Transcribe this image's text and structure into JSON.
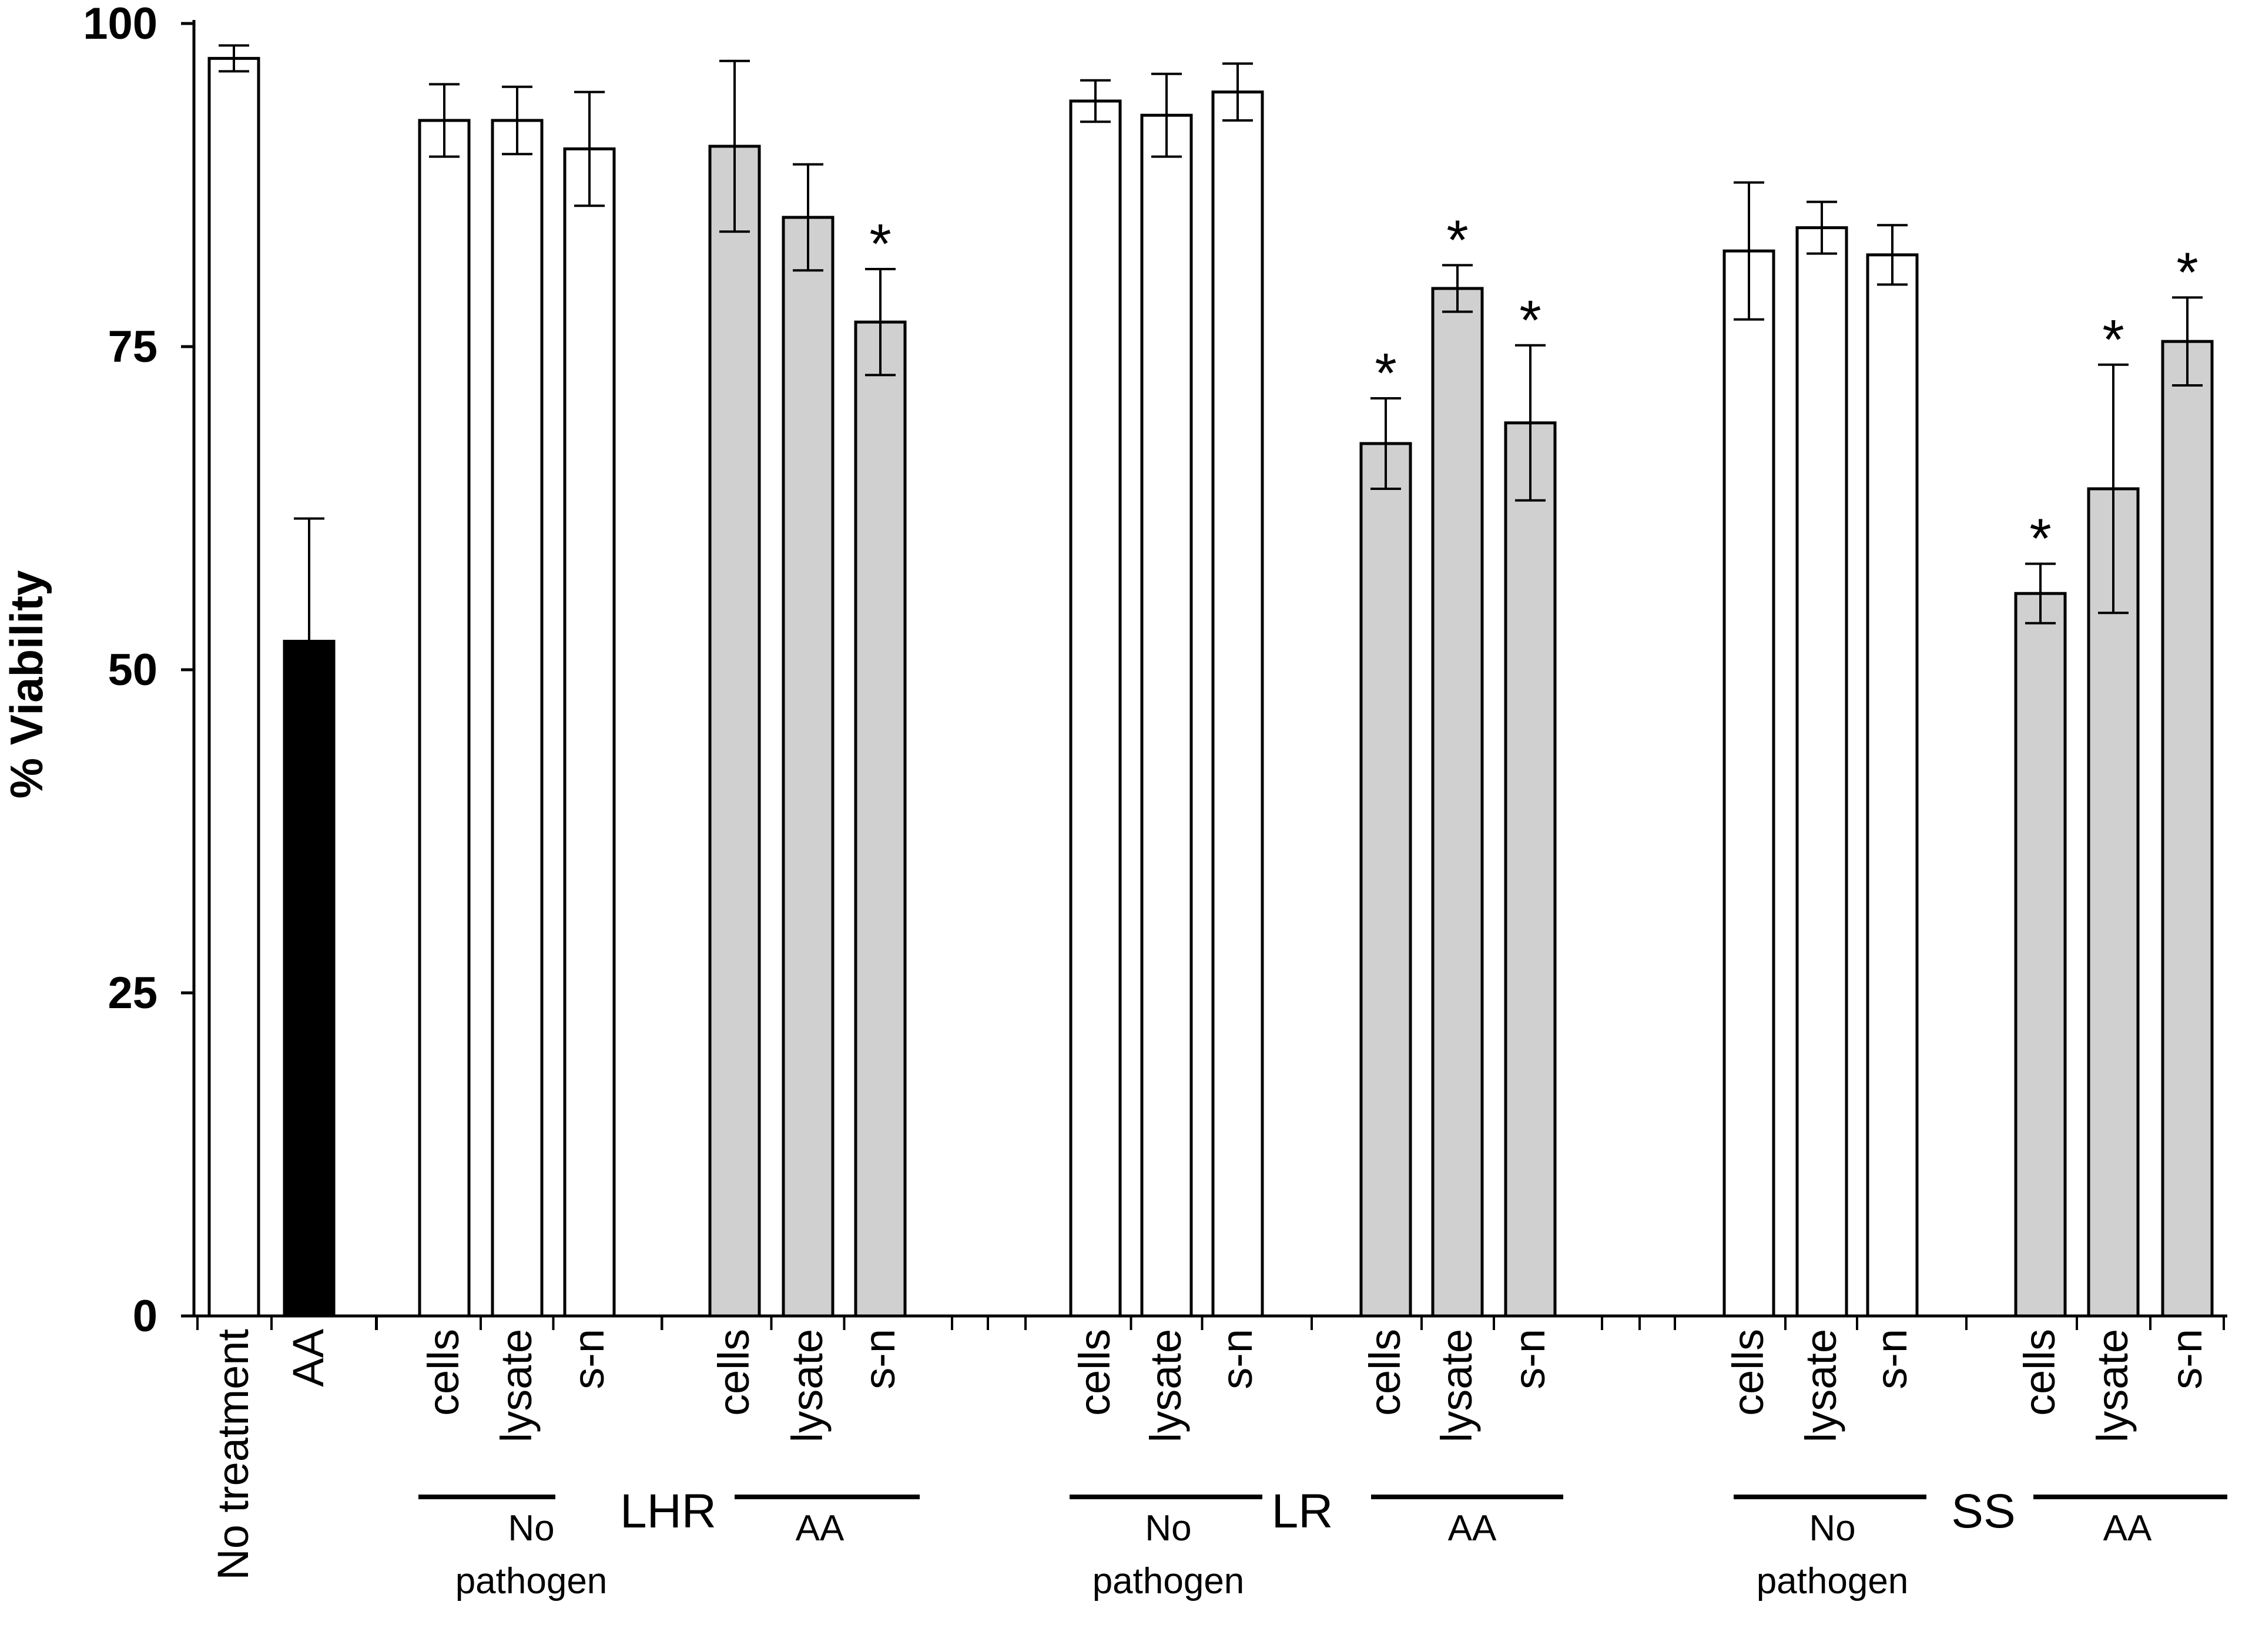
{
  "chart_data": {
    "type": "bar",
    "ylabel": "% Viability",
    "ylim": [
      0,
      100
    ],
    "yticks": [
      0,
      25,
      50,
      75,
      100
    ],
    "grid": false,
    "bars": [
      {
        "label": "No treatment",
        "value": 97.3,
        "err": 1.0,
        "color": "#ffffff",
        "sig": ""
      },
      {
        "label": "AA",
        "value": 52.2,
        "err": 9.5,
        "color": "#000000",
        "sig": ""
      },
      {
        "label": "cells",
        "value": 92.5,
        "err": 2.8,
        "color": "#ffffff",
        "sig": ""
      },
      {
        "label": "lysate",
        "value": 92.5,
        "err": 2.6,
        "color": "#ffffff",
        "sig": ""
      },
      {
        "label": "s-n",
        "value": 90.3,
        "err": 4.4,
        "color": "#ffffff",
        "sig": ""
      },
      {
        "label": "cells",
        "value": 90.5,
        "err": 6.6,
        "color": "#d0d0d0",
        "sig": ""
      },
      {
        "label": "lysate",
        "value": 85.0,
        "err": 4.1,
        "color": "#d0d0d0",
        "sig": ""
      },
      {
        "label": "s-n",
        "value": 76.9,
        "err": 4.1,
        "color": "#d0d0d0",
        "sig": "*"
      },
      {
        "label": "cells",
        "value": 94.0,
        "err": 1.6,
        "color": "#ffffff",
        "sig": ""
      },
      {
        "label": "lysate",
        "value": 92.9,
        "err": 3.2,
        "color": "#ffffff",
        "sig": ""
      },
      {
        "label": "s-n",
        "value": 94.7,
        "err": 2.2,
        "color": "#ffffff",
        "sig": ""
      },
      {
        "label": "cells",
        "value": 67.5,
        "err": 3.5,
        "color": "#d0d0d0",
        "sig": "*"
      },
      {
        "label": "lysate",
        "value": 79.5,
        "err": 1.8,
        "color": "#d0d0d0",
        "sig": "*"
      },
      {
        "label": "s-n",
        "value": 69.1,
        "err": 6.0,
        "color": "#d0d0d0",
        "sig": "*"
      },
      {
        "label": "cells",
        "value": 82.4,
        "err": 5.3,
        "color": "#ffffff",
        "sig": ""
      },
      {
        "label": "lysate",
        "value": 84.2,
        "err": 2.0,
        "color": "#ffffff",
        "sig": ""
      },
      {
        "label": "s-n",
        "value": 82.1,
        "err": 2.3,
        "color": "#ffffff",
        "sig": ""
      },
      {
        "label": "cells",
        "value": 55.9,
        "err": 2.3,
        "color": "#d0d0d0",
        "sig": "*"
      },
      {
        "label": "lysate",
        "value": 64.0,
        "err": 9.6,
        "color": "#d0d0d0",
        "sig": "*"
      },
      {
        "label": "s-n",
        "value": 75.4,
        "err": 3.4,
        "color": "#d0d0d0",
        "sig": "*"
      }
    ],
    "groups": [
      {
        "name": "LHR",
        "subgroups": [
          {
            "line1": "No",
            "line2": "pathogen"
          },
          {
            "line1": "AA",
            "line2": ""
          }
        ]
      },
      {
        "name": "LR",
        "subgroups": [
          {
            "line1": "No",
            "line2": "pathogen"
          },
          {
            "line1": "AA",
            "line2": ""
          }
        ]
      },
      {
        "name": "SS",
        "subgroups": [
          {
            "line1": "No",
            "line2": "pathogen"
          },
          {
            "line1": "AA",
            "line2": ""
          }
        ]
      }
    ]
  }
}
